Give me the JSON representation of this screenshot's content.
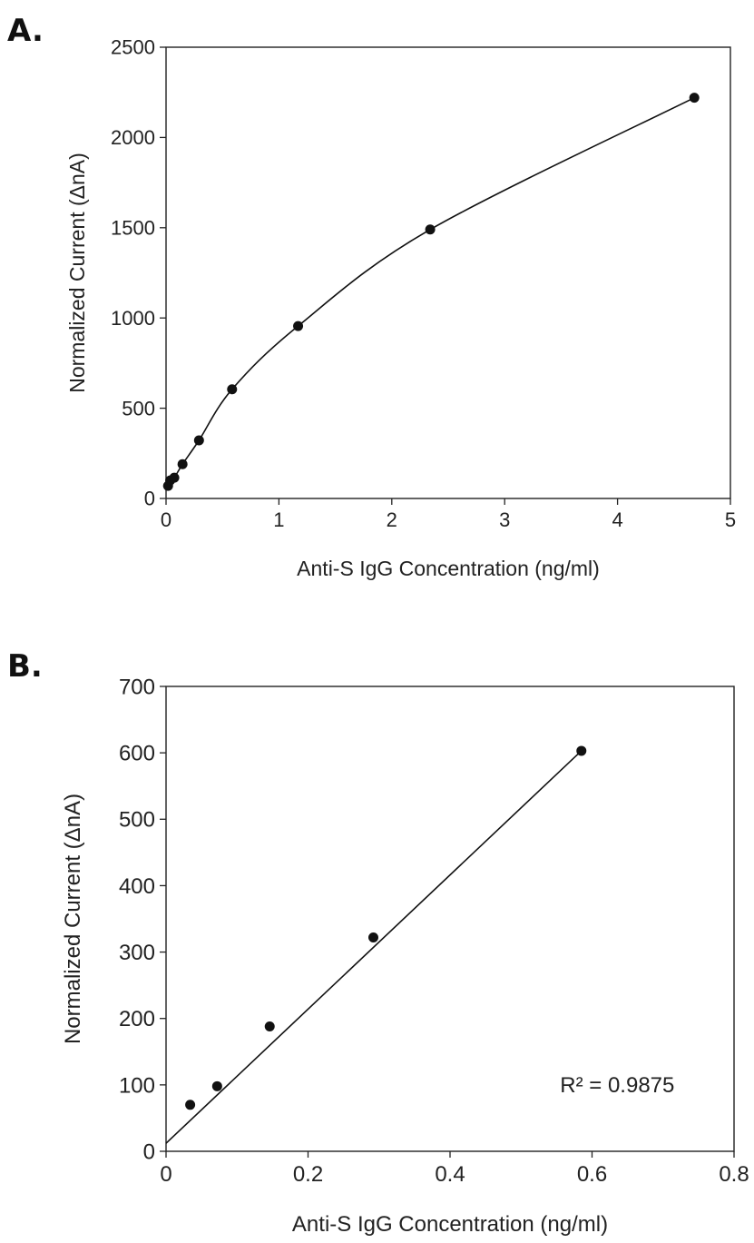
{
  "chart_data": [
    {
      "panel_label": "A.",
      "type": "scatter",
      "xlabel": "Anti-S IgG Concentration (ng/ml)",
      "ylabel": "Normalized Current (ΔnA)",
      "xlim": [
        0,
        5
      ],
      "ylim": [
        0,
        2500
      ],
      "x_ticks": [
        "0",
        "1",
        "2",
        "3",
        "4",
        "5"
      ],
      "y_ticks": [
        "0",
        "500",
        "1000",
        "1500",
        "2000",
        "2500"
      ],
      "grid": false,
      "series": [
        {
          "x": [
            0.018,
            0.037,
            0.073,
            0.146,
            0.292,
            0.585,
            1.17,
            2.34,
            4.68
          ],
          "y": [
            70,
            100,
            115,
            190,
            322,
            605,
            955,
            1490,
            2220
          ]
        }
      ],
      "fit": {
        "kind": "smooth"
      }
    },
    {
      "panel_label": "B.",
      "type": "scatter",
      "xlabel": "Anti-S IgG Concentration (ng/ml)",
      "ylabel": "Normalized Current (ΔnA)",
      "xlim": [
        0,
        0.8
      ],
      "ylim": [
        0,
        700
      ],
      "x_ticks": [
        "0",
        "0.2",
        "0.4",
        "0.6",
        "0.8"
      ],
      "y_ticks": [
        "0",
        "100",
        "200",
        "300",
        "400",
        "500",
        "600",
        "700"
      ],
      "grid": false,
      "series": [
        {
          "x": [
            0.034,
            0.072,
            0.146,
            0.292,
            0.585
          ],
          "y": [
            70,
            98,
            188,
            322,
            603
          ]
        }
      ],
      "fit": {
        "kind": "linear",
        "x": [
          0,
          0.585
        ],
        "y": [
          12,
          603
        ]
      },
      "annotation": "R² = 0.9875"
    }
  ]
}
